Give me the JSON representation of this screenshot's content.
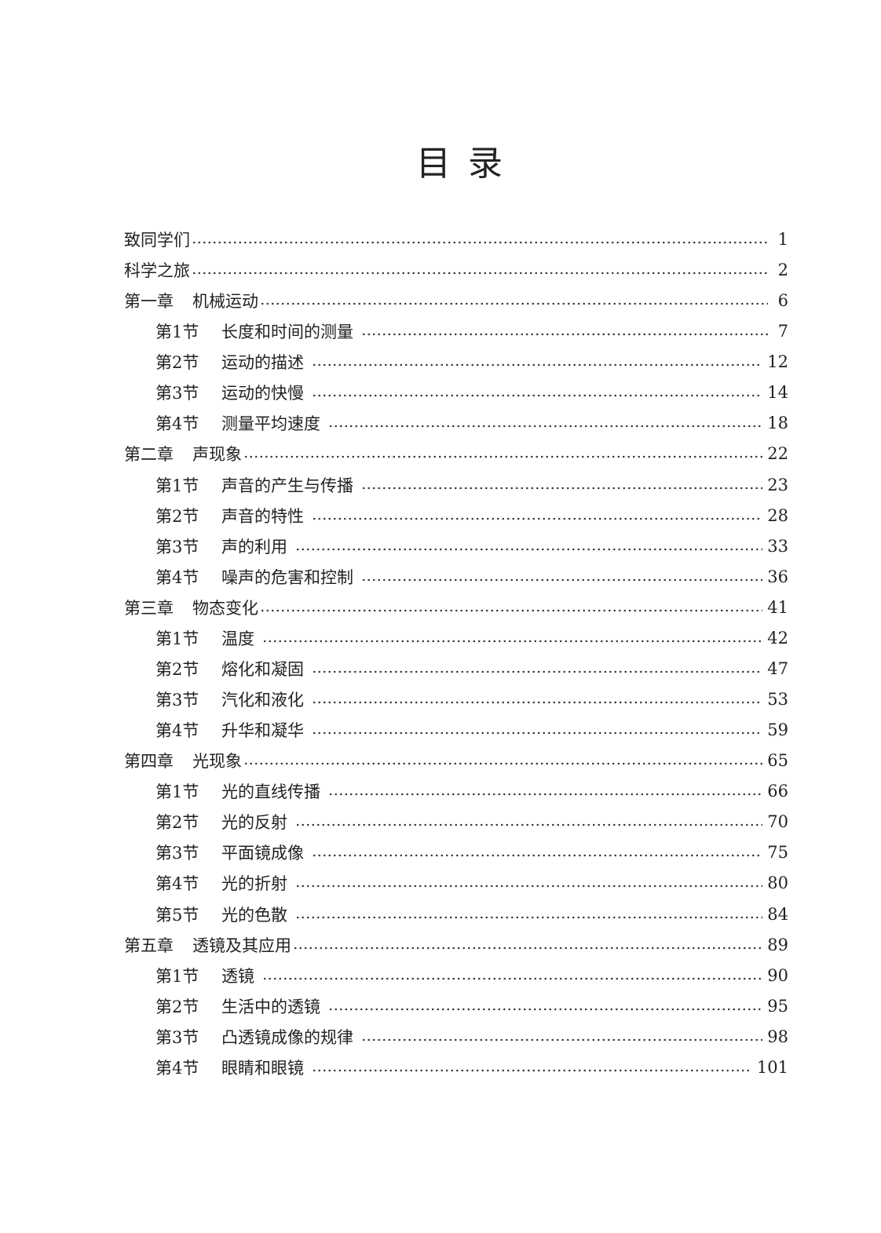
{
  "title": "目 录",
  "front": [
    {
      "title": "致同学们",
      "page": "1"
    },
    {
      "title": "科学之旅",
      "page": "2"
    }
  ],
  "chapters": [
    {
      "label": "第一章",
      "title": "机械运动",
      "page": "6",
      "sections": [
        {
          "label": "第1节",
          "title": "长度和时间的测量",
          "page": "7"
        },
        {
          "label": "第2节",
          "title": "运动的描述",
          "page": "12"
        },
        {
          "label": "第3节",
          "title": "运动的快慢",
          "page": "14"
        },
        {
          "label": "第4节",
          "title": "测量平均速度",
          "page": "18"
        }
      ]
    },
    {
      "label": "第二章",
      "title": "声现象",
      "page": "22",
      "sections": [
        {
          "label": "第1节",
          "title": "声音的产生与传播",
          "page": "23"
        },
        {
          "label": "第2节",
          "title": "声音的特性",
          "page": "28"
        },
        {
          "label": "第3节",
          "title": "声的利用",
          "page": "33"
        },
        {
          "label": "第4节",
          "title": "噪声的危害和控制",
          "page": "36"
        }
      ]
    },
    {
      "label": "第三章",
      "title": "物态变化",
      "page": "41",
      "sections": [
        {
          "label": "第1节",
          "title": "温度",
          "page": "42"
        },
        {
          "label": "第2节",
          "title": "熔化和凝固",
          "page": "47"
        },
        {
          "label": "第3节",
          "title": "汽化和液化",
          "page": "53"
        },
        {
          "label": "第4节",
          "title": "升华和凝华",
          "page": "59"
        }
      ]
    },
    {
      "label": "第四章",
      "title": "光现象",
      "page": "65",
      "sections": [
        {
          "label": "第1节",
          "title": "光的直线传播",
          "page": "66"
        },
        {
          "label": "第2节",
          "title": "光的反射",
          "page": "70"
        },
        {
          "label": "第3节",
          "title": "平面镜成像",
          "page": "75"
        },
        {
          "label": "第4节",
          "title": "光的折射",
          "page": "80"
        },
        {
          "label": "第5节",
          "title": "光的色散",
          "page": "84"
        }
      ]
    },
    {
      "label": "第五章",
      "title": "透镜及其应用",
      "page": "89",
      "sections": [
        {
          "label": "第1节",
          "title": "透镜",
          "page": "90"
        },
        {
          "label": "第2节",
          "title": "生活中的透镜",
          "page": "95"
        },
        {
          "label": "第3节",
          "title": "凸透镜成像的规律",
          "page": "98"
        },
        {
          "label": "第4节",
          "title": "眼睛和眼镜",
          "page": "101"
        }
      ]
    }
  ]
}
